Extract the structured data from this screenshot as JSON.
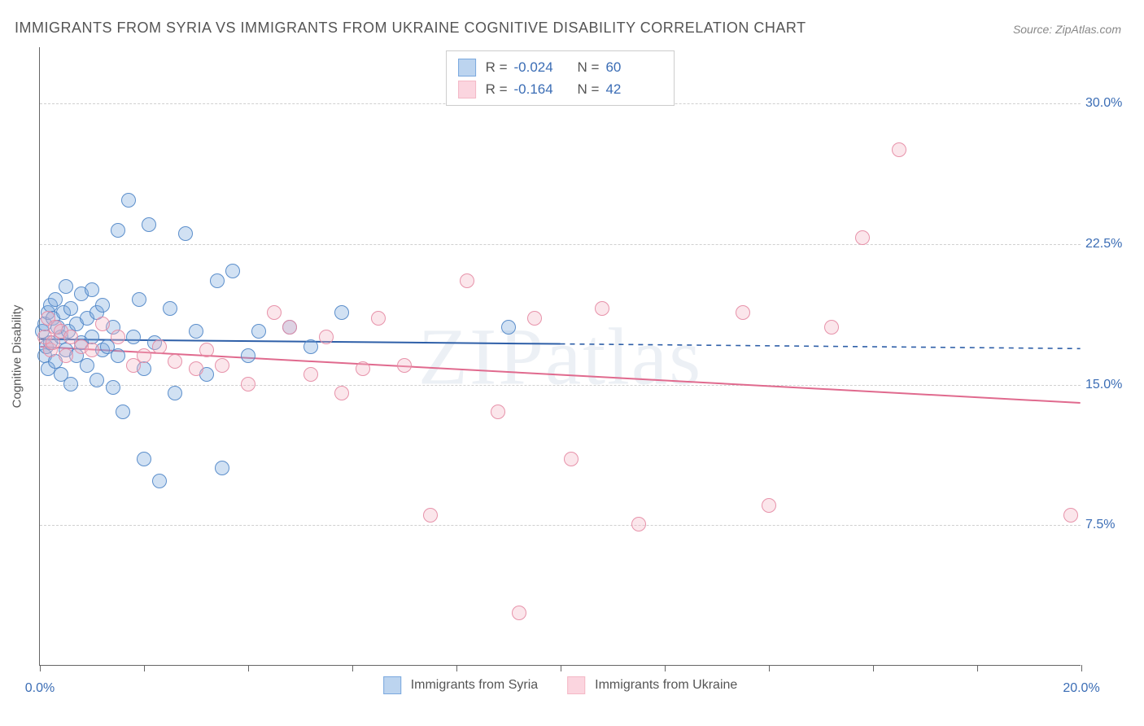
{
  "title": "IMMIGRANTS FROM SYRIA VS IMMIGRANTS FROM UKRAINE COGNITIVE DISABILITY CORRELATION CHART",
  "source": "Source: ZipAtlas.com",
  "watermark": "ZIPatlas",
  "y_axis_label": "Cognitive Disability",
  "chart": {
    "type": "scatter",
    "background_color": "#ffffff",
    "grid_color": "#d0d0d0",
    "axis_color": "#666666",
    "text_color": "#555555",
    "value_color": "#3b6db5",
    "xlim": [
      0,
      20
    ],
    "ylim": [
      0,
      33
    ],
    "y_ticks": [
      7.5,
      15.0,
      22.5,
      30.0
    ],
    "y_tick_labels": [
      "7.5%",
      "15.0%",
      "22.5%",
      "30.0%"
    ],
    "x_ticks": [
      0,
      2,
      4,
      6,
      8,
      10,
      12,
      14,
      16,
      18,
      20
    ],
    "x_tick_labels": {
      "0": "0.0%",
      "20": "20.0%"
    },
    "point_radius": 9,
    "point_fill_opacity": 0.35,
    "point_stroke_opacity": 0.9,
    "point_stroke_width": 1.5
  },
  "series": [
    {
      "name": "Immigrants from Syria",
      "color": "#7aa8de",
      "stroke": "#4f86c8",
      "R": "-0.024",
      "N": "60",
      "trend": {
        "y_at_x0": 17.4,
        "y_at_xmax": 16.9,
        "solid_until_x": 10,
        "line_color": "#2e5fa8",
        "line_width": 2
      },
      "points": [
        [
          0.05,
          17.8
        ],
        [
          0.1,
          18.2
        ],
        [
          0.1,
          16.5
        ],
        [
          0.12,
          17.0
        ],
        [
          0.15,
          18.8
        ],
        [
          0.15,
          15.8
        ],
        [
          0.2,
          17.2
        ],
        [
          0.2,
          19.2
        ],
        [
          0.25,
          18.5
        ],
        [
          0.3,
          16.2
        ],
        [
          0.3,
          19.5
        ],
        [
          0.35,
          18.0
        ],
        [
          0.4,
          17.5
        ],
        [
          0.4,
          15.5
        ],
        [
          0.45,
          18.8
        ],
        [
          0.5,
          20.2
        ],
        [
          0.5,
          16.8
        ],
        [
          0.55,
          17.8
        ],
        [
          0.6,
          19.0
        ],
        [
          0.6,
          15.0
        ],
        [
          0.7,
          18.2
        ],
        [
          0.7,
          16.5
        ],
        [
          0.8,
          17.2
        ],
        [
          0.8,
          19.8
        ],
        [
          0.9,
          18.5
        ],
        [
          0.9,
          16.0
        ],
        [
          1.0,
          17.5
        ],
        [
          1.0,
          20.0
        ],
        [
          1.1,
          18.8
        ],
        [
          1.1,
          15.2
        ],
        [
          1.2,
          16.8
        ],
        [
          1.2,
          19.2
        ],
        [
          1.3,
          17.0
        ],
        [
          1.4,
          18.0
        ],
        [
          1.4,
          14.8
        ],
        [
          1.5,
          23.2
        ],
        [
          1.5,
          16.5
        ],
        [
          1.6,
          13.5
        ],
        [
          1.7,
          24.8
        ],
        [
          1.8,
          17.5
        ],
        [
          1.9,
          19.5
        ],
        [
          2.0,
          15.8
        ],
        [
          2.0,
          11.0
        ],
        [
          2.1,
          23.5
        ],
        [
          2.2,
          17.2
        ],
        [
          2.3,
          9.8
        ],
        [
          2.5,
          19.0
        ],
        [
          2.6,
          14.5
        ],
        [
          2.8,
          23.0
        ],
        [
          3.0,
          17.8
        ],
        [
          3.2,
          15.5
        ],
        [
          3.4,
          20.5
        ],
        [
          3.5,
          10.5
        ],
        [
          3.7,
          21.0
        ],
        [
          4.0,
          16.5
        ],
        [
          4.2,
          17.8
        ],
        [
          4.8,
          18.0
        ],
        [
          5.2,
          17.0
        ],
        [
          5.8,
          18.8
        ],
        [
          9.0,
          18.0
        ]
      ]
    },
    {
      "name": "Immigrants from Ukraine",
      "color": "#f4b8c6",
      "stroke": "#e58aa3",
      "R": "-0.164",
      "N": "42",
      "trend": {
        "y_at_x0": 17.0,
        "y_at_xmax": 14.0,
        "solid_until_x": 20,
        "line_color": "#e06a8e",
        "line_width": 2
      },
      "points": [
        [
          0.1,
          17.5
        ],
        [
          0.15,
          18.5
        ],
        [
          0.2,
          16.8
        ],
        [
          0.25,
          17.2
        ],
        [
          0.3,
          18.0
        ],
        [
          0.4,
          17.8
        ],
        [
          0.5,
          16.5
        ],
        [
          0.6,
          17.5
        ],
        [
          0.8,
          17.0
        ],
        [
          1.0,
          16.8
        ],
        [
          1.2,
          18.2
        ],
        [
          1.5,
          17.5
        ],
        [
          1.8,
          16.0
        ],
        [
          2.0,
          16.5
        ],
        [
          2.3,
          17.0
        ],
        [
          2.6,
          16.2
        ],
        [
          3.0,
          15.8
        ],
        [
          3.2,
          16.8
        ],
        [
          3.5,
          16.0
        ],
        [
          4.0,
          15.0
        ],
        [
          4.5,
          18.8
        ],
        [
          4.8,
          18.0
        ],
        [
          5.2,
          15.5
        ],
        [
          5.5,
          17.5
        ],
        [
          5.8,
          14.5
        ],
        [
          6.2,
          15.8
        ],
        [
          6.5,
          18.5
        ],
        [
          7.0,
          16.0
        ],
        [
          7.5,
          8.0
        ],
        [
          8.2,
          20.5
        ],
        [
          8.8,
          13.5
        ],
        [
          9.2,
          2.8
        ],
        [
          9.5,
          18.5
        ],
        [
          10.2,
          11.0
        ],
        [
          10.8,
          19.0
        ],
        [
          11.5,
          7.5
        ],
        [
          13.5,
          18.8
        ],
        [
          14.0,
          8.5
        ],
        [
          15.2,
          18.0
        ],
        [
          15.8,
          22.8
        ],
        [
          16.5,
          27.5
        ],
        [
          19.8,
          8.0
        ]
      ]
    }
  ],
  "legend_top": [
    {
      "swatch_fill": "#bcd4ef",
      "swatch_stroke": "#7aa8de",
      "R_label": "R =",
      "R_val": "-0.024",
      "N_label": "N =",
      "N_val": "60"
    },
    {
      "swatch_fill": "#fbd5df",
      "swatch_stroke": "#f4b8c6",
      "R_label": "R =",
      "R_val": "-0.164",
      "N_label": "N =",
      "N_val": "42"
    }
  ],
  "legend_bottom": [
    {
      "swatch_fill": "#bcd4ef",
      "swatch_stroke": "#7aa8de",
      "label": "Immigrants from Syria"
    },
    {
      "swatch_fill": "#fbd5df",
      "swatch_stroke": "#f4b8c6",
      "label": "Immigrants from Ukraine"
    }
  ]
}
